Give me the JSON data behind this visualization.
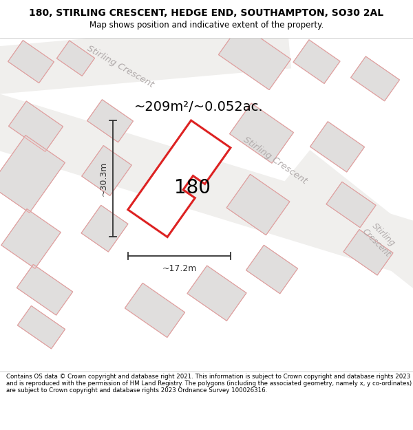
{
  "title_line1": "180, STIRLING CRESCENT, HEDGE END, SOUTHAMPTON, SO30 2AL",
  "title_line2": "Map shows position and indicative extent of the property.",
  "footer_text": "Contains OS data © Crown copyright and database right 2021. This information is subject to Crown copyright and database rights 2023 and is reproduced with the permission of HM Land Registry. The polygons (including the associated geometry, namely x, y co-ordinates) are subject to Crown copyright and database rights 2023 Ordnance Survey 100026316.",
  "area_text": "~209m²/~0.052ac.",
  "label_height": "~30.3m",
  "label_width": "~17.2m",
  "label_number": "180",
  "map_bg": "#f5f4f2",
  "building_fill": "#e0dedd",
  "building_edge": "#b0aeac",
  "pink_edge": "#e8a0a0",
  "red_edge": "#dd2222",
  "road_fill": "#ffffff",
  "road_edge": "#c8c4c0",
  "street_label_color": "#b0aaaa",
  "area_fontsize": 14,
  "num_fontsize": 20
}
